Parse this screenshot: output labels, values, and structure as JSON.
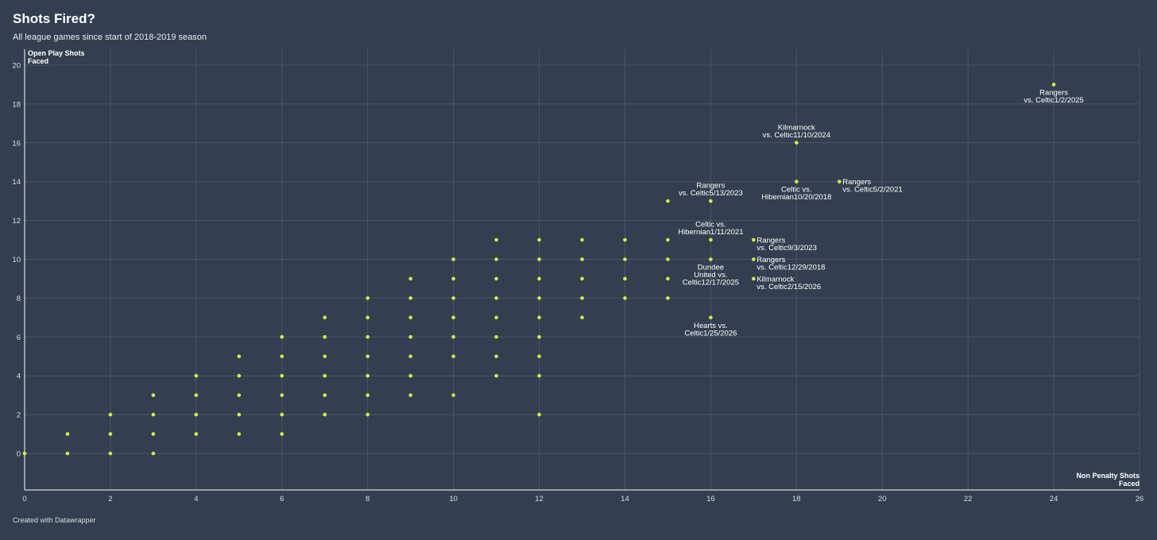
{
  "header": {
    "title": "Shots Fired?",
    "subtitle": "All league games since start of 2018-2019 season"
  },
  "footer": {
    "credit": "Created with Datawrapper"
  },
  "colors": {
    "background": "#333f50",
    "point": "#d6ee3f",
    "grid": "#4a5667",
    "axis": "#ffffff"
  },
  "chart_data": {
    "type": "scatter",
    "title": "Shots Fired?",
    "subtitle": "All league games since start of 2018-2019 season",
    "xlabel": [
      "Non Penalty Shots",
      "Faced"
    ],
    "ylabel": [
      "Open Play Shots",
      "Faced"
    ],
    "xlim": [
      0,
      26
    ],
    "ylim": [
      -2,
      21
    ],
    "xticks": [
      0,
      2,
      4,
      6,
      8,
      10,
      12,
      14,
      16,
      18,
      20,
      22,
      24,
      26
    ],
    "yticks": [
      0,
      2,
      4,
      6,
      8,
      10,
      12,
      14,
      16,
      18,
      20
    ],
    "grid": true,
    "points": [
      [
        0,
        0
      ],
      [
        1,
        0
      ],
      [
        1,
        1
      ],
      [
        2,
        0
      ],
      [
        2,
        1
      ],
      [
        2,
        2
      ],
      [
        3,
        0
      ],
      [
        3,
        1
      ],
      [
        3,
        2
      ],
      [
        3,
        3
      ],
      [
        4,
        1
      ],
      [
        4,
        2
      ],
      [
        4,
        3
      ],
      [
        4,
        4
      ],
      [
        5,
        1
      ],
      [
        5,
        2
      ],
      [
        5,
        3
      ],
      [
        5,
        4
      ],
      [
        5,
        5
      ],
      [
        6,
        1
      ],
      [
        6,
        2
      ],
      [
        6,
        3
      ],
      [
        6,
        4
      ],
      [
        6,
        5
      ],
      [
        6,
        6
      ],
      [
        7,
        2
      ],
      [
        7,
        3
      ],
      [
        7,
        4
      ],
      [
        7,
        5
      ],
      [
        7,
        6
      ],
      [
        7,
        7
      ],
      [
        8,
        2
      ],
      [
        8,
        3
      ],
      [
        8,
        4
      ],
      [
        8,
        5
      ],
      [
        8,
        6
      ],
      [
        8,
        7
      ],
      [
        8,
        8
      ],
      [
        9,
        3
      ],
      [
        9,
        4
      ],
      [
        9,
        5
      ],
      [
        9,
        6
      ],
      [
        9,
        7
      ],
      [
        9,
        8
      ],
      [
        9,
        9
      ],
      [
        10,
        3
      ],
      [
        10,
        5
      ],
      [
        10,
        6
      ],
      [
        10,
        7
      ],
      [
        10,
        8
      ],
      [
        10,
        9
      ],
      [
        10,
        10
      ],
      [
        11,
        4
      ],
      [
        11,
        5
      ],
      [
        11,
        6
      ],
      [
        11,
        7
      ],
      [
        11,
        8
      ],
      [
        11,
        9
      ],
      [
        11,
        10
      ],
      [
        11,
        11
      ],
      [
        12,
        2
      ],
      [
        12,
        4
      ],
      [
        12,
        5
      ],
      [
        12,
        6
      ],
      [
        12,
        7
      ],
      [
        12,
        8
      ],
      [
        12,
        9
      ],
      [
        12,
        10
      ],
      [
        12,
        11
      ],
      [
        13,
        7
      ],
      [
        13,
        8
      ],
      [
        13,
        9
      ],
      [
        13,
        10
      ],
      [
        13,
        11
      ],
      [
        14,
        8
      ],
      [
        14,
        9
      ],
      [
        14,
        10
      ],
      [
        14,
        11
      ],
      [
        15,
        8
      ],
      [
        15,
        9
      ],
      [
        15,
        10
      ],
      [
        15,
        11
      ],
      [
        15,
        13
      ],
      [
        16,
        7
      ],
      [
        16,
        10
      ],
      [
        16,
        11
      ],
      [
        16,
        13
      ],
      [
        17,
        9
      ],
      [
        17,
        10
      ],
      [
        17,
        11
      ],
      [
        18,
        14
      ],
      [
        18,
        16
      ],
      [
        19,
        14
      ],
      [
        24,
        19
      ]
    ],
    "annotations": [
      {
        "x": 24,
        "y": 19,
        "lines": [
          "Rangers",
          "vs. Celtic1/2/2025"
        ],
        "position": "below"
      },
      {
        "x": 18,
        "y": 16,
        "lines": [
          "Kilmarnock",
          "vs. Celtic11/10/2024"
        ],
        "position": "above"
      },
      {
        "x": 18,
        "y": 14,
        "lines": [
          "Celtic vs.",
          "Hibernian10/20/2018"
        ],
        "position": "below"
      },
      {
        "x": 19,
        "y": 14,
        "lines": [
          "Rangers",
          "vs. Celtic5/2/2021"
        ],
        "position": "right"
      },
      {
        "x": 16,
        "y": 13,
        "lines": [
          "Rangers",
          "vs. Celtic5/13/2023"
        ],
        "position": "above"
      },
      {
        "x": 16,
        "y": 11,
        "lines": [
          "Celtic vs.",
          "Hibernian1/11/2021"
        ],
        "position": "above"
      },
      {
        "x": 17,
        "y": 11,
        "lines": [
          "Rangers",
          "vs. Celtic9/3/2023"
        ],
        "position": "right"
      },
      {
        "x": 17,
        "y": 10,
        "lines": [
          "Rangers",
          "vs. Celtic12/29/2018"
        ],
        "position": "right"
      },
      {
        "x": 16,
        "y": 10,
        "lines": [
          "Dundee",
          "United vs.",
          "Celtic12/17/2025"
        ],
        "position": "below"
      },
      {
        "x": 17,
        "y": 9,
        "lines": [
          "Kilmarnock",
          "vs. Celtic2/15/2026"
        ],
        "position": "right"
      },
      {
        "x": 16,
        "y": 7,
        "lines": [
          "Hearts vs.",
          "Celtic1/25/2026"
        ],
        "position": "below"
      }
    ]
  }
}
